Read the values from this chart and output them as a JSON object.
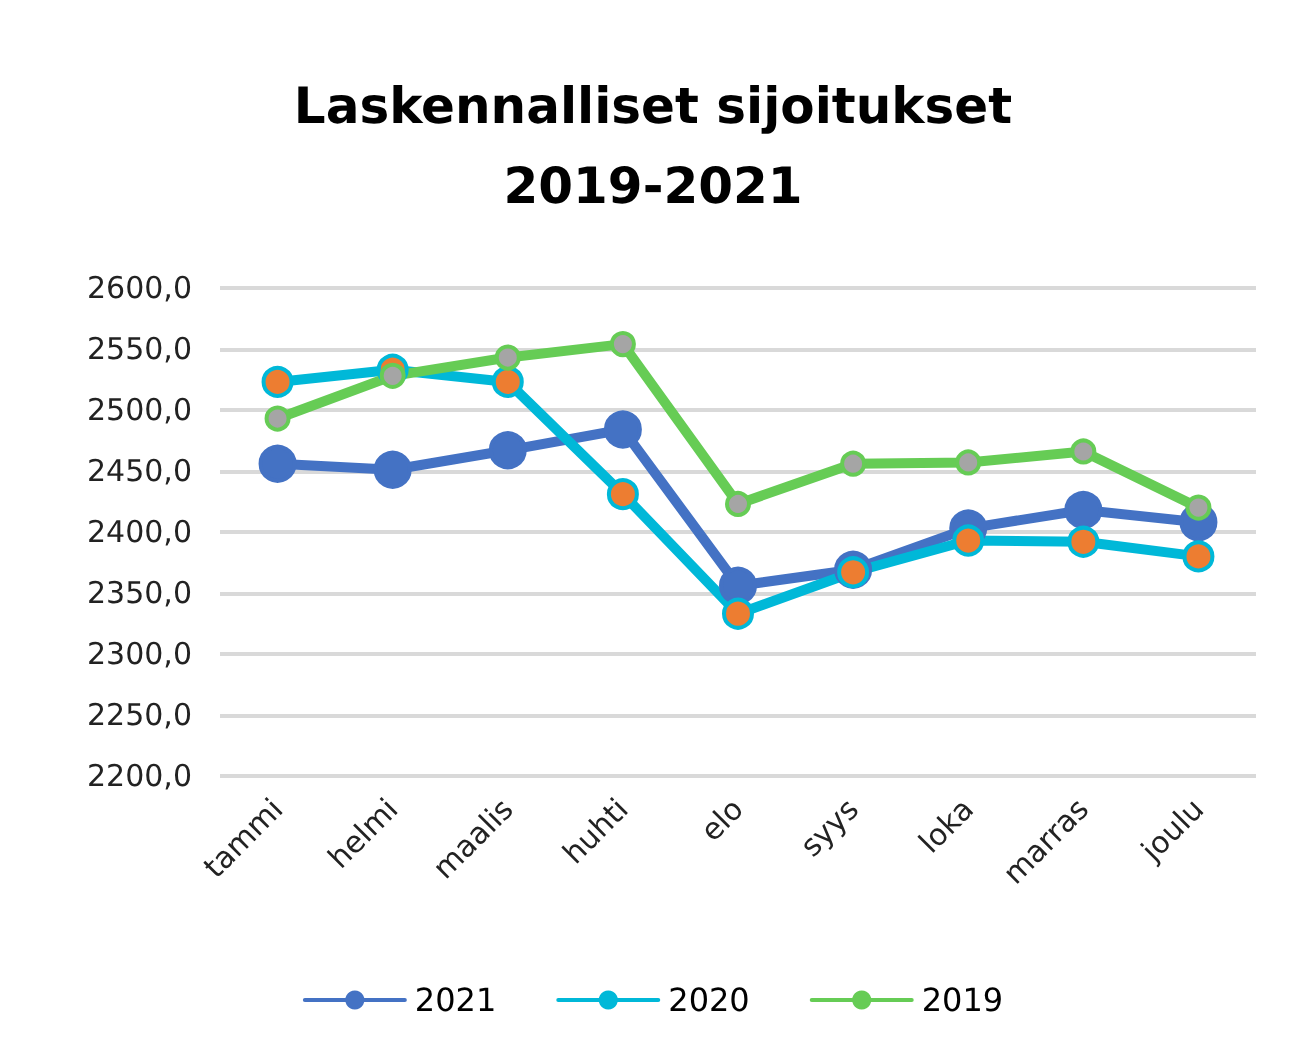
{
  "chart_data": {
    "type": "line",
    "title": "Laskennalliset sijoitukset\n2019-2021",
    "categories": [
      "tammi",
      "helmi",
      "maalis",
      "huhti",
      "elo",
      "syys",
      "loka",
      "marras",
      "joulu"
    ],
    "series": [
      {
        "name": "2021",
        "color": "#4472c4",
        "values": [
          2456,
          2451,
          2467,
          2484,
          2356,
          2369,
          2403,
          2418,
          2408
        ]
      },
      {
        "name": "2020",
        "color": "#00b8d8",
        "colors": [
          "#ed7d31",
          "#ed7d31",
          "#ed7d31",
          "#ed7d31",
          "#ed7d31",
          "#ed7d31",
          "#ed7d31",
          "#ed7d31",
          "#ed7d31"
        ],
        "values": [
          2523,
          2533,
          2523,
          2431,
          2333,
          2367,
          2393,
          2392,
          2380
        ]
      },
      {
        "name": "2019",
        "color": "#66cc55",
        "colors": [
          "#a5a5a5",
          "#a5a5a5",
          "#a5a5a5",
          "#a5a5a5",
          "#a5a5a5",
          "#a5a5a5",
          "#a5a5a5",
          "#a5a5a5",
          "#a5a5a5"
        ],
        "values": [
          2493,
          2528,
          2543,
          2554,
          2423,
          2456,
          2457,
          2466,
          2420
        ]
      }
    ],
    "ylim": [
      2200,
      2600
    ],
    "yticks": [
      {
        "value": 2200,
        "label": "2200,0"
      },
      {
        "value": 2250,
        "label": "2250,0"
      },
      {
        "value": 2300,
        "label": "2300,0"
      },
      {
        "value": 2350,
        "label": "2350,0"
      },
      {
        "value": 2400,
        "label": "2400,0"
      },
      {
        "value": 2450,
        "label": "2450,0"
      },
      {
        "value": 2500,
        "label": "2500,0"
      },
      {
        "value": 2550,
        "label": "2550,0"
      },
      {
        "value": 2600,
        "label": "2600,0"
      }
    ],
    "grid": "y",
    "legend": "bottom",
    "marker": "circle",
    "line_style": "solid"
  }
}
